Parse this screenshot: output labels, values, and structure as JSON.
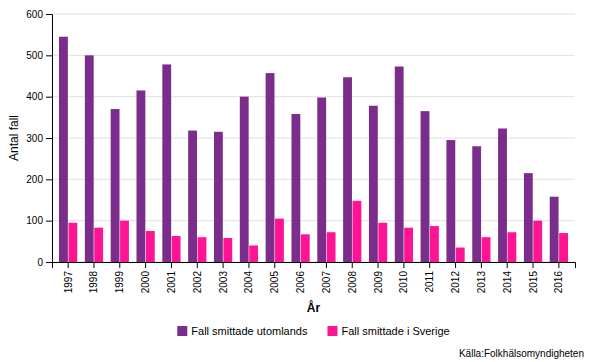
{
  "chart_data": {
    "type": "bar",
    "categories": [
      "1997",
      "1998",
      "1999",
      "2000",
      "2001",
      "2002",
      "2003",
      "2004",
      "2005",
      "2006",
      "2007",
      "2008",
      "2009",
      "2010",
      "2011",
      "2012",
      "2013",
      "2014",
      "2015",
      "2016"
    ],
    "series": [
      {
        "name": "Fall smittade utomlands",
        "color": "#7B2D8B",
        "values": [
          545,
          500,
          370,
          415,
          478,
          318,
          315,
          400,
          457,
          358,
          398,
          447,
          378,
          473,
          365,
          295,
          280,
          323,
          215,
          158
        ]
      },
      {
        "name": "Fall smittade i Sverige",
        "color": "#FF1493",
        "values": [
          95,
          83,
          100,
          75,
          63,
          60,
          58,
          40,
          105,
          67,
          72,
          148,
          95,
          83,
          87,
          35,
          60,
          72,
          100,
          70
        ]
      }
    ],
    "xlabel": "År",
    "ylabel": "Antal fall",
    "ylim": [
      0,
      600
    ],
    "yticks": [
      0,
      100,
      200,
      300,
      400,
      500,
      600
    ],
    "grid": true,
    "legend": "bottom",
    "source": "Källa:Folkhälsomyndigheten"
  }
}
